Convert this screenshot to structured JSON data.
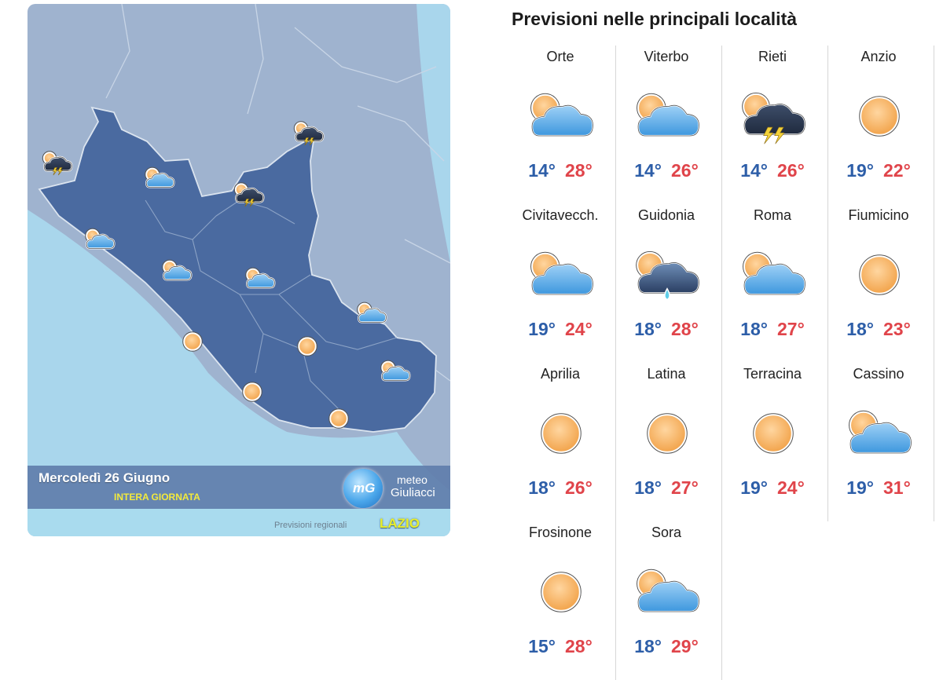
{
  "panel": {
    "title": "Previsioni nelle principali località"
  },
  "map": {
    "date": "Mercoledì 26 Giugno",
    "period": "INTERA GIORNATA",
    "logo_mark": "mG",
    "logo_line1": "meteo",
    "logo_line2": "Giuliacci",
    "region_prefix": "Previsioni regionali",
    "region_name": "LAZIO",
    "icons": [
      {
        "icon": "thunderstorm-icon"
      },
      {
        "icon": "partly-cloudy-icon"
      },
      {
        "icon": "thunderstorm-icon"
      },
      {
        "icon": "thunderstorm-icon"
      },
      {
        "icon": "partly-cloudy-icon"
      },
      {
        "icon": "partly-cloudy-icon"
      },
      {
        "icon": "partly-cloudy-icon"
      },
      {
        "icon": "partly-cloudy-icon"
      },
      {
        "icon": "sun-icon"
      },
      {
        "icon": "sun-icon"
      },
      {
        "icon": "partly-cloudy-icon"
      },
      {
        "icon": "sun-icon"
      },
      {
        "icon": "sun-icon"
      }
    ]
  },
  "cities": [
    {
      "name": "Orte",
      "icon": "partly-cloudy-icon",
      "min": "14°",
      "max": "28°"
    },
    {
      "name": "Viterbo",
      "icon": "partly-cloudy-icon",
      "min": "14°",
      "max": "26°"
    },
    {
      "name": "Rieti",
      "icon": "thunderstorm-icon",
      "min": "14°",
      "max": "26°"
    },
    {
      "name": "Anzio",
      "icon": "sun-icon",
      "min": "19°",
      "max": "22°"
    },
    {
      "name": "Civitavecch.",
      "icon": "partly-cloudy-icon",
      "min": "19°",
      "max": "24°"
    },
    {
      "name": "Guidonia",
      "icon": "cloud-rain-icon",
      "min": "18°",
      "max": "28°"
    },
    {
      "name": "Roma",
      "icon": "partly-cloudy-icon",
      "min": "18°",
      "max": "27°"
    },
    {
      "name": "Fiumicino",
      "icon": "sun-icon",
      "min": "18°",
      "max": "23°"
    },
    {
      "name": "Aprilia",
      "icon": "sun-icon",
      "min": "18°",
      "max": "26°"
    },
    {
      "name": "Latina",
      "icon": "sun-icon",
      "min": "18°",
      "max": "27°"
    },
    {
      "name": "Terracina",
      "icon": "sun-icon",
      "min": "19°",
      "max": "24°"
    },
    {
      "name": "Cassino",
      "icon": "partly-cloudy-icon",
      "min": "19°",
      "max": "31°"
    },
    {
      "name": "Frosinone",
      "icon": "sun-icon",
      "min": "15°",
      "max": "28°"
    },
    {
      "name": "Sora",
      "icon": "partly-cloudy-icon",
      "min": "18°",
      "max": "29°"
    }
  ]
}
